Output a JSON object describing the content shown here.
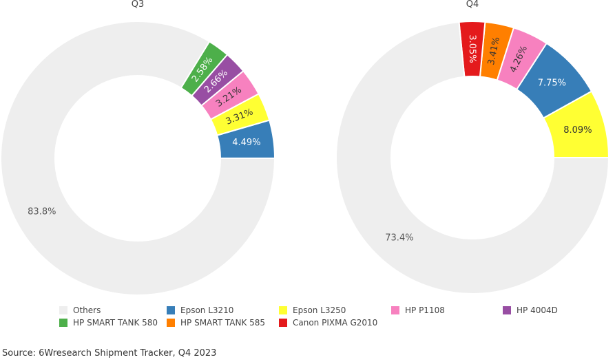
{
  "chart_data": {
    "type": "pie",
    "variant": "donut",
    "legend_position": "bottom",
    "categories": [
      "Others",
      "Epson L3210",
      "Epson L3250",
      "HP P1108",
      "HP 4004D",
      "HP SMART TANK 580",
      "HP SMART TANK 585",
      "Canon PIXMA G2010"
    ],
    "colors": {
      "Others": "#eeeeee",
      "Epson L3210": "#377eb8",
      "Epson L3250": "#ffff33",
      "HP P1108": "#f781bf",
      "HP 4004D": "#984ea3",
      "HP SMART TANK 580": "#4daf4a",
      "HP SMART TANK 585": "#ff7f00",
      "Canon PIXMA G2010": "#e41a1c"
    },
    "charts": [
      {
        "title": "Q3",
        "slices": [
          {
            "name": "Epson L3210",
            "value": 4.49,
            "label": "4.49%"
          },
          {
            "name": "Epson L3250",
            "value": 3.31,
            "label": "3.31%"
          },
          {
            "name": "HP P1108",
            "value": 3.21,
            "label": "3.21%"
          },
          {
            "name": "HP 4004D",
            "value": 2.66,
            "label": "2.66%"
          },
          {
            "name": "HP SMART TANK 580",
            "value": 2.58,
            "label": "2.58%"
          },
          {
            "name": "Others",
            "value": 83.8,
            "label": "83.8%"
          }
        ]
      },
      {
        "title": "Q4",
        "slices": [
          {
            "name": "Epson L3250",
            "value": 8.09,
            "label": "8.09%"
          },
          {
            "name": "Epson L3210",
            "value": 7.75,
            "label": "7.75%"
          },
          {
            "name": "HP P1108",
            "value": 4.26,
            "label": "4.26%"
          },
          {
            "name": "HP SMART TANK 585",
            "value": 3.41,
            "label": "3.41%"
          },
          {
            "name": "Canon PIXMA G2010",
            "value": 3.05,
            "label": "3.05%"
          },
          {
            "name": "Others",
            "value": 73.4,
            "label": "73.4%"
          }
        ]
      }
    ]
  },
  "source": "Source: 6Wresearch Shipment Tracker, Q4 2023"
}
